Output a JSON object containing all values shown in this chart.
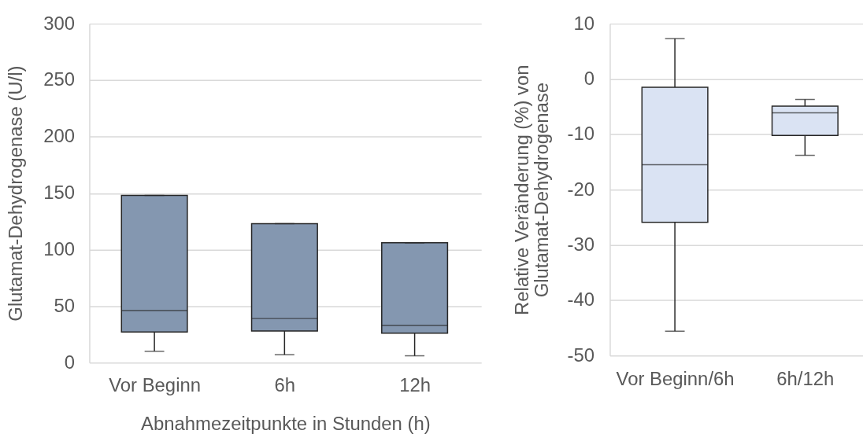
{
  "chart_data": [
    {
      "type": "box",
      "categories": [
        "Vor Beginn",
        "6h",
        "12h"
      ],
      "series": [
        {
          "color": "#8497b0",
          "boxes": [
            {
              "low": 10,
              "q1": 27,
              "median": 46,
              "q3": 148,
              "high": 148
            },
            {
              "low": 7,
              "q1": 28,
              "median": 39,
              "q3": 123,
              "high": 123
            },
            {
              "low": 6,
              "q1": 26,
              "median": 33,
              "q3": 106,
              "high": 106
            }
          ]
        }
      ],
      "ylim": [
        0,
        300
      ],
      "yticks": [
        0,
        50,
        100,
        150,
        200,
        250,
        300
      ],
      "grid": "y",
      "xlabel": "Abnahmezeitpunkte in Stunden (h)",
      "ylabel": "Glutamat-Dehydrogenase  (U/l)"
    },
    {
      "type": "box",
      "categories": [
        "Vor Beginn/6h",
        "6h/12h"
      ],
      "series": [
        {
          "color": "#dae3f3",
          "boxes": [
            {
              "low": -45.6,
              "q1": -25.9,
              "median": -15.5,
              "q3": -1.5,
              "high": 7.3
            },
            {
              "low": -13.8,
              "q1": -10.2,
              "median": -6.1,
              "q3": -4.9,
              "high": -3.7
            }
          ]
        }
      ],
      "ylim": [
        -50,
        10
      ],
      "yticks": [
        -50,
        -40,
        -30,
        -20,
        -10,
        0,
        10
      ],
      "grid": "y",
      "ylabel": "Relative Veränderung (%) von\nGlutamat-Dehydrogenase"
    }
  ]
}
